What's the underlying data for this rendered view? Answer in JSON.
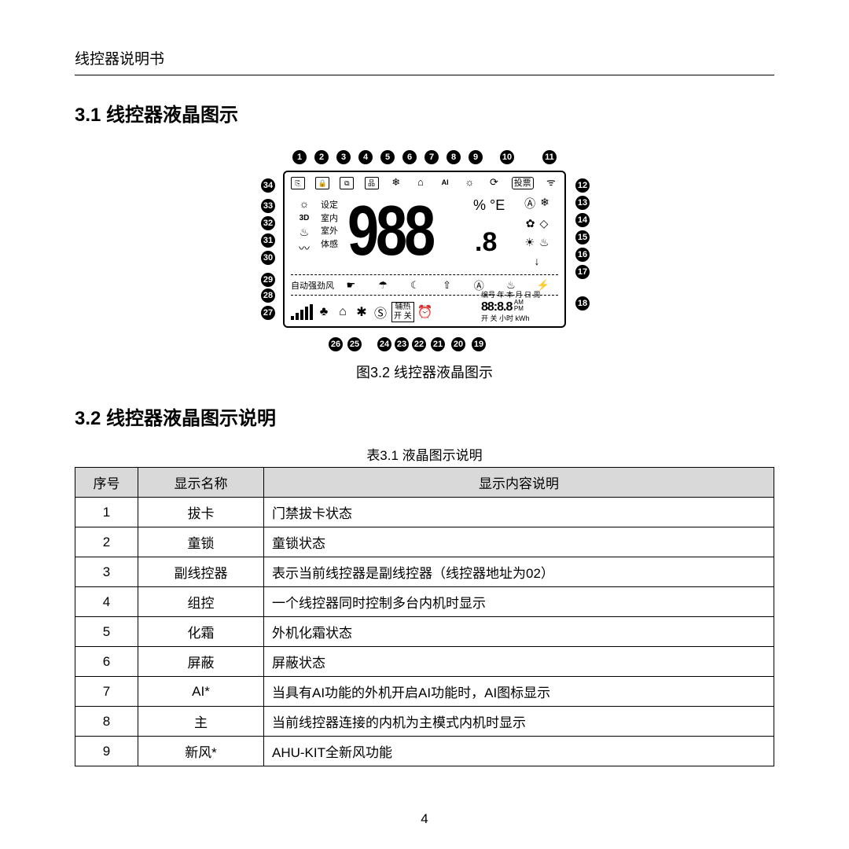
{
  "header": "线控器说明书",
  "section31_title": "3.1 线控器液晶图示",
  "section32_title": "3.2 线控器液晶图示说明",
  "figure_caption": "图3.2 线控器液晶图示",
  "table_caption": "表3.1 液晶图示说明",
  "page_number": "4",
  "lcd": {
    "top_callouts": [
      "1",
      "2",
      "3",
      "4",
      "5",
      "6",
      "7",
      "8",
      "9",
      "10",
      "11"
    ],
    "right_callouts": [
      "12",
      "13",
      "14",
      "15",
      "16",
      "17",
      "18"
    ],
    "bottom_callouts": [
      "19",
      "20",
      "21",
      "22",
      "23",
      "24",
      "25",
      "26"
    ],
    "left_callouts": [
      "27",
      "28",
      "29",
      "30",
      "31",
      "32",
      "33",
      "34"
    ],
    "top_icons_vote": "投票",
    "big_digits": "988",
    "small_digit": ".8",
    "pct_e": "% °E",
    "left_labels": [
      "设定",
      "室内",
      "室外",
      "体感"
    ],
    "left_icon_3d": "3D",
    "mode_text_auto": "自动强劲风",
    "aux_heat_label": "辅热",
    "aux_heat_onoff": "开 关",
    "br_top": "编号 年 本 月 日 周",
    "br_time": "88:8.8",
    "br_ampm_am": "AM",
    "br_ampm_pm": "PM",
    "br_bottom": "开 关 小时 kWh"
  },
  "table": {
    "headers": [
      "序号",
      "显示名称",
      "显示内容说明"
    ],
    "rows": [
      [
        "1",
        "拔卡",
        "门禁拔卡状态"
      ],
      [
        "2",
        "童锁",
        "童锁状态"
      ],
      [
        "3",
        "副线控器",
        "表示当前线控器是副线控器（线控器地址为02）"
      ],
      [
        "4",
        "组控",
        "一个线控器同时控制多台内机时显示"
      ],
      [
        "5",
        "化霜",
        "外机化霜状态"
      ],
      [
        "6",
        "屏蔽",
        "屏蔽状态"
      ],
      [
        "7",
        "AI*",
        "当具有AI功能的外机开启AI功能时，AI图标显示"
      ],
      [
        "8",
        "主",
        "当前线控器连接的内机为主模式内机时显示"
      ],
      [
        "9",
        "新风*",
        "AHU-KIT全新风功能"
      ]
    ]
  }
}
